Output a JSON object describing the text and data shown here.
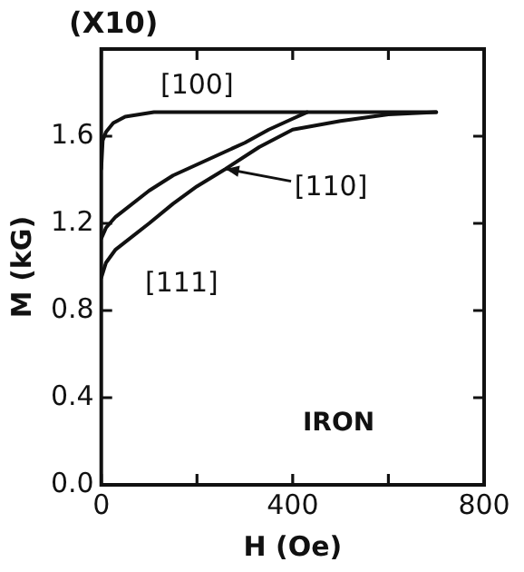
{
  "chart_data": {
    "type": "line",
    "xlabel": "H (Oe)",
    "ylabel": "M (kG)",
    "annotations": [
      "(X10)",
      "IRON",
      "[100]",
      {
        "text": "[110]",
        "x": 260,
        "y": 1.45
      },
      "[111]"
    ],
    "series": [
      {
        "color": "#111111",
        "x": [
          0,
          3,
          10,
          25,
          50,
          80,
          110,
          400,
          700
        ],
        "values": [
          1.45,
          1.58,
          1.62,
          1.66,
          1.69,
          1.7,
          1.71,
          1.71,
          1.71
        ]
      },
      {
        "color": "#111111",
        "x": [
          0,
          10,
          30,
          100,
          150,
          200,
          250,
          300,
          350,
          400,
          430
        ],
        "values": [
          1.13,
          1.18,
          1.23,
          1.35,
          1.42,
          1.47,
          1.52,
          1.57,
          1.63,
          1.68,
          1.71
        ]
      },
      {
        "color": "#111111",
        "x": [
          0,
          10,
          30,
          100,
          150,
          200,
          260,
          330,
          400,
          500,
          600,
          700
        ],
        "values": [
          0.95,
          1.02,
          1.08,
          1.2,
          1.29,
          1.37,
          1.45,
          1.55,
          1.63,
          1.67,
          1.7,
          1.71
        ]
      }
    ],
    "xlim": [
      0,
      800
    ],
    "xticks": [
      0,
      {
        "value": 200,
        "label": null
      },
      400,
      {
        "value": 600,
        "label": null
      },
      800
    ],
    "ylim": [
      0,
      2.0
    ],
    "yticks": [
      "0.0",
      0.4,
      0.8,
      1.2,
      1.6,
      {
        "value": 2.0,
        "label": null
      }
    ],
    "grid": false,
    "legend": false,
    "marker": "none",
    "line_style": "solid"
  }
}
